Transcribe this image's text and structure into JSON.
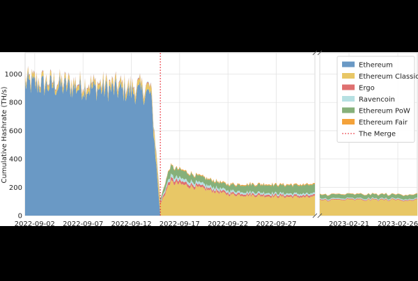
{
  "chart_data": {
    "type": "area",
    "stacked": true,
    "ylabel": "Cumulative Hashrate (TH/s)",
    "ylim": [
      0,
      1150
    ],
    "yticks": [
      0,
      200,
      400,
      600,
      800,
      1000
    ],
    "grid": true,
    "broken_x_axis": true,
    "legend_position": "top-right",
    "x_segments": [
      {
        "from": "2022-09-01",
        "to": "2022-10-01",
        "ticks": [
          "2022-09-02",
          "2022-09-07",
          "2022-09-12",
          "2022-09-17",
          "2022-09-22",
          "2022-09-27"
        ]
      },
      {
        "from": "2023-02-18",
        "to": "2023-02-28",
        "ticks": [
          "2023-02-21",
          "2023-02-26"
        ]
      }
    ],
    "event": {
      "name": "The Merge",
      "date": "2022-09-15",
      "color": "#e8242e"
    },
    "series": [
      {
        "name": "Ethereum",
        "color": "#6a99c5",
        "points": [
          [
            "2022-09-01",
            930
          ],
          [
            "2022-09-05",
            910
          ],
          [
            "2022-09-10",
            890
          ],
          [
            "2022-09-14",
            860
          ],
          [
            "2022-09-15",
            0
          ],
          [
            "2023-02-28",
            0
          ]
        ]
      },
      {
        "name": "Ethereum Classic",
        "color": "#e8c766",
        "points": [
          [
            "2022-09-01",
            32
          ],
          [
            "2022-09-07",
            33
          ],
          [
            "2022-09-12",
            38
          ],
          [
            "2022-09-14",
            45
          ],
          [
            "2022-09-15",
            80
          ],
          [
            "2022-09-16",
            235
          ],
          [
            "2022-09-19",
            195
          ],
          [
            "2022-09-22",
            150
          ],
          [
            "2022-09-27",
            135
          ],
          [
            "2022-09-30",
            130
          ],
          [
            "2023-02-18",
            110
          ],
          [
            "2023-02-28",
            110
          ]
        ]
      },
      {
        "name": "Ergo",
        "color": "#df7070",
        "points": [
          [
            "2022-09-01",
            5
          ],
          [
            "2022-09-14",
            7
          ],
          [
            "2022-09-15",
            12
          ],
          [
            "2022-09-16",
            22
          ],
          [
            "2022-09-20",
            14
          ],
          [
            "2022-09-24",
            12
          ],
          [
            "2022-09-30",
            12
          ],
          [
            "2023-02-18",
            5
          ],
          [
            "2023-02-28",
            5
          ]
        ]
      },
      {
        "name": "Ravencoin",
        "color": "#b6e0e2",
        "points": [
          [
            "2022-09-01",
            3
          ],
          [
            "2022-09-14",
            4
          ],
          [
            "2022-09-15",
            8
          ],
          [
            "2022-09-16",
            22
          ],
          [
            "2022-09-20",
            17
          ],
          [
            "2022-09-24",
            12
          ],
          [
            "2022-09-30",
            12
          ],
          [
            "2023-02-18",
            6
          ],
          [
            "2023-02-28",
            6
          ]
        ]
      },
      {
        "name": "Ethereum PoW",
        "color": "#86b07a",
        "points": [
          [
            "2022-09-01",
            0
          ],
          [
            "2022-09-14",
            0
          ],
          [
            "2022-09-15",
            15
          ],
          [
            "2022-09-16",
            65
          ],
          [
            "2022-09-19",
            45
          ],
          [
            "2022-09-22",
            40
          ],
          [
            "2022-09-25",
            55
          ],
          [
            "2022-09-30",
            60
          ],
          [
            "2023-02-18",
            28
          ],
          [
            "2023-02-28",
            28
          ]
        ]
      },
      {
        "name": "Ethereum Fair",
        "color": "#f4a23a",
        "points": [
          [
            "2022-09-01",
            0
          ],
          [
            "2022-09-14",
            0
          ],
          [
            "2022-09-15",
            3
          ],
          [
            "2022-09-16",
            6
          ],
          [
            "2022-09-30",
            6
          ],
          [
            "2023-02-18",
            3
          ],
          [
            "2023-02-28",
            3
          ]
        ]
      }
    ]
  }
}
